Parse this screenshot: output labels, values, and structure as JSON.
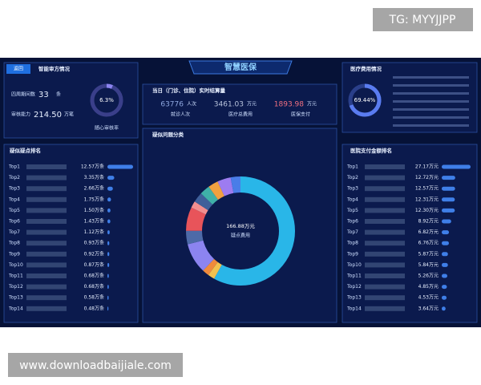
{
  "watermark_top": "TG: MYYJJPP",
  "watermark_bottom": "www.downloadbaijiale.com",
  "header": {
    "title": "智慧医保",
    "back": "返回"
  },
  "audit": {
    "title": "智能审方情况",
    "rows": [
      {
        "label": "四周期间数",
        "value": "33",
        "unit": "条"
      },
      {
        "label": "审核能力",
        "value": "214.50",
        "unit": "万笔"
      }
    ],
    "rate": {
      "value": 6.3,
      "label": "6.3%"
    },
    "caption": "随心审核率"
  },
  "settlement": {
    "title": "当日（门诊、住院）实时结算量",
    "stats": [
      {
        "value": "63776",
        "unit": "人次",
        "caption": "就诊人次"
      },
      {
        "value": "3461.03",
        "unit": "万元",
        "caption": "医疗总费用"
      },
      {
        "value": "1893.98",
        "unit": "万元",
        "caption": "医保支付"
      }
    ]
  },
  "cost": {
    "title": "医疗费用情况",
    "rate": {
      "value": 69.44,
      "label": "69.44%"
    }
  },
  "suspect_rank": {
    "title": "疑似疑点排名",
    "items": [
      {
        "rank": "Top1",
        "value": 12.57,
        "label": "12.57万条"
      },
      {
        "rank": "Top2",
        "value": 3.35,
        "label": "3.35万条"
      },
      {
        "rank": "Top3",
        "value": 2.66,
        "label": "2.66万条"
      },
      {
        "rank": "Top4",
        "value": 1.75,
        "label": "1.75万条"
      },
      {
        "rank": "Top5",
        "value": 1.5,
        "label": "1.50万条"
      },
      {
        "rank": "Top6",
        "value": 1.43,
        "label": "1.43万条"
      },
      {
        "rank": "Top7",
        "value": 1.12,
        "label": "1.12万条"
      },
      {
        "rank": "Top8",
        "value": 0.93,
        "label": "0.93万条"
      },
      {
        "rank": "Top9",
        "value": 0.92,
        "label": "0.92万条"
      },
      {
        "rank": "Top10",
        "value": 0.87,
        "label": "0.87万条"
      },
      {
        "rank": "Top11",
        "value": 0.68,
        "label": "0.68万条"
      },
      {
        "rank": "Top12",
        "value": 0.68,
        "label": "0.68万条"
      },
      {
        "rank": "Top13",
        "value": 0.58,
        "label": "0.58万条"
      },
      {
        "rank": "Top14",
        "value": 0.48,
        "label": "0.48万条"
      }
    ]
  },
  "category": {
    "title": "疑似问题分类",
    "total": "166.88万元",
    "caption": "疑点费用",
    "segments": [
      {
        "value": 58,
        "color": "#29b6e8"
      },
      {
        "value": 2,
        "color": "#f2c14e"
      },
      {
        "value": 2,
        "color": "#f08a3c"
      },
      {
        "value": 9,
        "color": "#8c84f0"
      },
      {
        "value": 4,
        "color": "#4d6aa8"
      },
      {
        "value": 7,
        "color": "#e8545a"
      },
      {
        "value": 2,
        "color": "#f28f8f"
      },
      {
        "value": 3,
        "color": "#3e5f9a"
      },
      {
        "value": 3,
        "color": "#3fb0a8"
      },
      {
        "value": 3,
        "color": "#f0a040"
      },
      {
        "value": 4,
        "color": "#9d7cf0"
      },
      {
        "value": 3,
        "color": "#4a7de8"
      }
    ]
  },
  "hospital_rank": {
    "title": "医院支付金额排名",
    "items": [
      {
        "rank": "Top1",
        "value": 27.17,
        "label": "27.17万元"
      },
      {
        "rank": "Top2",
        "value": 12.72,
        "label": "12.72万元"
      },
      {
        "rank": "Top3",
        "value": 12.57,
        "label": "12.57万元"
      },
      {
        "rank": "Top4",
        "value": 12.31,
        "label": "12.31万元"
      },
      {
        "rank": "Top5",
        "value": 12.3,
        "label": "12.30万元"
      },
      {
        "rank": "Top6",
        "value": 8.92,
        "label": "8.92万元"
      },
      {
        "rank": "Top7",
        "value": 6.82,
        "label": "6.82万元"
      },
      {
        "rank": "Top8",
        "value": 6.76,
        "label": "6.76万元"
      },
      {
        "rank": "Top9",
        "value": 5.87,
        "label": "5.87万元"
      },
      {
        "rank": "Top10",
        "value": 5.84,
        "label": "5.84万元"
      },
      {
        "rank": "Top11",
        "value": 5.26,
        "label": "5.26万元"
      },
      {
        "rank": "Top12",
        "value": 4.85,
        "label": "4.85万元"
      },
      {
        "rank": "Top13",
        "value": 4.53,
        "label": "4.53万元"
      },
      {
        "rank": "Top14",
        "value": 3.64,
        "label": "3.64万元"
      }
    ]
  }
}
